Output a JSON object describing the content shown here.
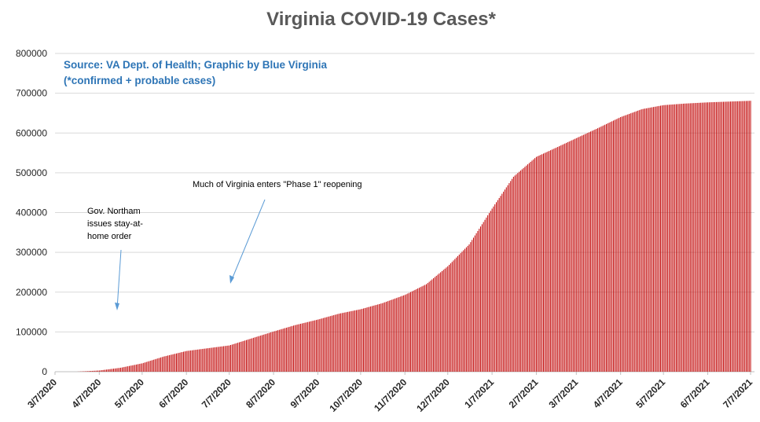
{
  "chart_data": {
    "type": "bar",
    "title": "Virginia COVID-19 Cases*",
    "source_line1": "Source: VA Dept. of Health; Graphic by Blue Virginia",
    "source_line2": "(*confirmed + probable cases)",
    "bar_color": "#c00000",
    "grid": true,
    "ylim": [
      0,
      800000
    ],
    "y_ticks": [
      "0",
      "100000",
      "200000",
      "300000",
      "400000",
      "500000",
      "600000",
      "700000",
      "800000"
    ],
    "x_tick_labels": [
      "3/7/2020",
      "4/7/2020",
      "5/7/2020",
      "6/7/2020",
      "7/7/2020",
      "8/7/2020",
      "9/7/2020",
      "10/7/2020",
      "11/7/2020",
      "12/7/2020",
      "1/7/2021",
      "2/7/2021",
      "3/7/2021",
      "4/7/2021",
      "5/7/2021",
      "6/7/2021",
      "7/7/2021"
    ],
    "series": [
      {
        "x": [
          "3/7/2020",
          "3/22/2020",
          "4/7/2020",
          "4/22/2020",
          "5/7/2020",
          "5/22/2020",
          "6/7/2020",
          "6/22/2020",
          "7/7/2020",
          "7/22/2020",
          "8/7/2020",
          "8/22/2020",
          "9/7/2020",
          "9/22/2020",
          "10/7/2020",
          "10/22/2020",
          "11/7/2020",
          "11/22/2020",
          "12/7/2020",
          "12/22/2020",
          "1/7/2021",
          "1/22/2021",
          "2/7/2021",
          "2/22/2021",
          "3/7/2021",
          "3/22/2021",
          "4/7/2021",
          "4/22/2021",
          "5/7/2021",
          "5/22/2021",
          "6/7/2021",
          "6/22/2021",
          "7/7/2021"
        ],
        "values": [
          0,
          0,
          3000,
          10000,
          21000,
          38000,
          52000,
          59000,
          66000,
          83000,
          101000,
          117000,
          131000,
          146000,
          157000,
          172000,
          193000,
          220000,
          265000,
          320000,
          410000,
          490000,
          540000,
          565000,
          587000,
          612000,
          640000,
          660000,
          670000,
          674000,
          677000,
          679000,
          681000
        ]
      }
    ],
    "annotations": [
      {
        "lines": [
          "Gov. Northam",
          "issues stay-at-",
          "home order"
        ],
        "points_to": "3/30/2020"
      },
      {
        "lines": [
          "Much of Virginia enters \"Phase 1\" reopening"
        ],
        "points_to": "5/15/2020"
      }
    ]
  }
}
